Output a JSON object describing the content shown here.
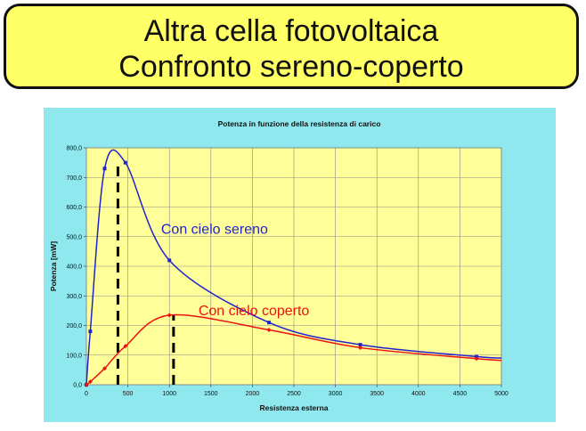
{
  "slide": {
    "title_line1": "Altra cella fotovoltaica",
    "title_line2": "Confronto sereno-coperto"
  },
  "colors": {
    "slide_title_bg": "#ffff66",
    "chart_bg": "#8fe8ee",
    "plot_bg": "#ffff99",
    "sereno": "#2222cc",
    "coperto": "#ee1111"
  },
  "chart_data": {
    "type": "line",
    "title": "Potenza in funzione della resistenza di carico",
    "xlabel": "Resistenza esterna",
    "ylabel": "Potenza [mW]",
    "xlim": [
      0,
      5000
    ],
    "ylim": [
      0,
      800
    ],
    "x_ticks": [
      0,
      500,
      1000,
      1500,
      2000,
      2500,
      3000,
      3500,
      4000,
      4500,
      5000
    ],
    "y_ticks": [
      "0,0",
      "100,0",
      "200,0",
      "300,0",
      "400,0",
      "500,0",
      "600,0",
      "700,0",
      "800,0"
    ],
    "grid": true,
    "series": [
      {
        "name": "Con cielo sereno",
        "color": "#2222cc",
        "marker": "square",
        "x": [
          0,
          47,
          220,
          470,
          1000,
          2200,
          3300,
          4700,
          5000
        ],
        "y": [
          0,
          180,
          730,
          750,
          420,
          210,
          135,
          95,
          90
        ]
      },
      {
        "name": "Con cielo coperto",
        "color": "#ee1111",
        "marker": "diamond",
        "x": [
          0,
          47,
          220,
          470,
          1000,
          2200,
          3300,
          4700,
          5000
        ],
        "y": [
          0,
          10,
          55,
          130,
          235,
          185,
          125,
          88,
          82
        ]
      }
    ],
    "annotations": [
      {
        "text": "Con cielo sereno",
        "color": "#2222cc",
        "x": 900,
        "y": 510
      },
      {
        "text": "Con cielo coperto",
        "color": "#ee1111",
        "x": 1350,
        "y": 235
      }
    ],
    "reference_lines": [
      {
        "x": 380,
        "y_from": 0,
        "y_to": 755,
        "style": "dashed",
        "color": "#000000"
      },
      {
        "x": 1050,
        "y_from": 0,
        "y_to": 235,
        "style": "dashed",
        "color": "#000000"
      }
    ]
  }
}
